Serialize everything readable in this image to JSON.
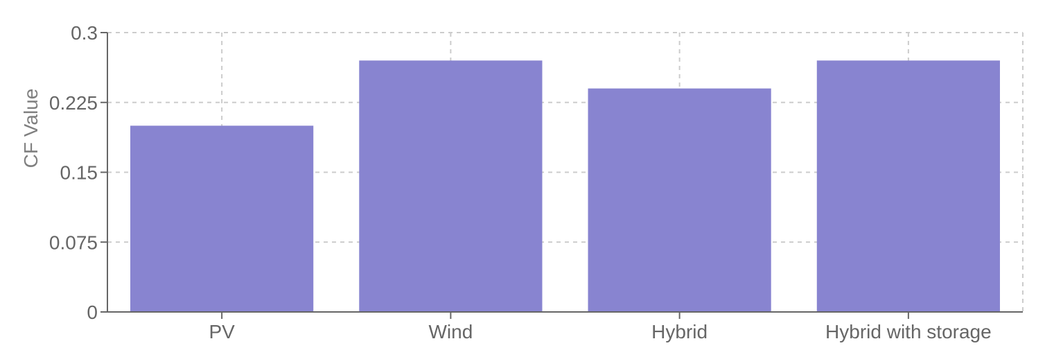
{
  "chart_data": {
    "type": "bar",
    "categories": [
      "PV",
      "Wind",
      "Hybrid",
      "Hybrid with storage"
    ],
    "values": [
      0.2,
      0.27,
      0.24,
      0.27
    ],
    "ylabel": "CF Value",
    "xlabel": "",
    "ylim": [
      0,
      0.3
    ],
    "yticks": [
      0,
      0.075,
      0.15,
      0.225,
      0.3
    ],
    "ytick_labels": [
      "0",
      "0.075",
      "0.15",
      "0.225",
      "0.3"
    ],
    "grid": true,
    "colors": {
      "bar": "#8884d0",
      "grid": "#cccccc",
      "axis": "#666666",
      "tick_text": "#666666",
      "axis_title": "#808080"
    }
  }
}
